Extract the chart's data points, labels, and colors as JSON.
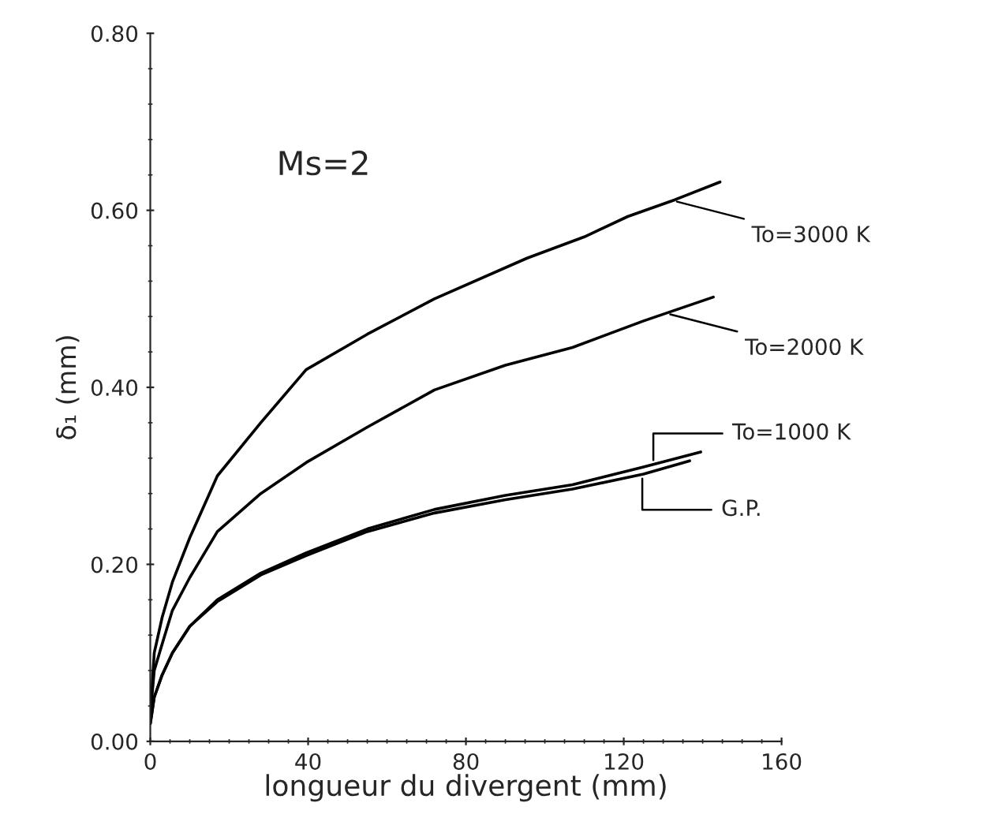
{
  "chart_data": {
    "type": "line",
    "xlabel": "longueur du divergent (mm)",
    "ylabel": "δ₁ (mm)",
    "annotations": [
      "Ms=2"
    ],
    "xlim": [
      0,
      160
    ],
    "xticks": [
      0,
      40,
      80,
      120,
      160
    ],
    "ylim": [
      0,
      0.8
    ],
    "yticks": [
      {
        "value": 0,
        "label": "0.00"
      },
      {
        "value": 0.2,
        "label": "0.20"
      },
      {
        "value": 0.4,
        "label": "0.40"
      },
      {
        "value": 0.6,
        "label": "0.60"
      },
      {
        "value": 0.8,
        "label": "0.80"
      }
    ],
    "grid": false,
    "legend": "right",
    "marker": "none",
    "line_style": "solid",
    "series": [
      {
        "name": "To=3000 K",
        "color": "#000000",
        "x": [
          0,
          1,
          3,
          5.6,
          10,
          17,
          28,
          39.5,
          55,
          72,
          95.5,
          110,
          121,
          133,
          144.4
        ],
        "values": [
          0.03,
          0.1,
          0.14,
          0.18,
          0.23,
          0.3,
          0.36,
          0.42,
          0.46,
          0.5,
          0.546,
          0.57,
          0.593,
          0.612,
          0.632
        ]
      },
      {
        "name": "To=2000 K",
        "color": "#000000",
        "x": [
          0,
          1,
          3,
          5.6,
          10,
          17,
          28,
          39.5,
          55,
          72,
          90,
          107,
          125,
          142.7
        ],
        "values": [
          0.03,
          0.08,
          0.11,
          0.148,
          0.185,
          0.237,
          0.28,
          0.315,
          0.355,
          0.397,
          0.425,
          0.445,
          0.475,
          0.502
        ]
      },
      {
        "name": "To=1000 K",
        "color": "#000000",
        "x": [
          0,
          1,
          3,
          5.6,
          10,
          17,
          28,
          39.5,
          55,
          72,
          90,
          107,
          125,
          139.5
        ],
        "values": [
          0.02,
          0.05,
          0.075,
          0.1,
          0.13,
          0.16,
          0.19,
          0.213,
          0.24,
          0.262,
          0.278,
          0.29,
          0.31,
          0.327
        ]
      },
      {
        "name": "G.P.",
        "color": "#000000",
        "x": [
          0,
          1,
          3,
          5.6,
          10,
          17,
          28,
          39.5,
          55,
          72,
          90,
          107,
          125,
          136.7
        ],
        "values": [
          0.02,
          0.05,
          0.075,
          0.1,
          0.13,
          0.158,
          0.188,
          0.21,
          0.237,
          0.258,
          0.273,
          0.285,
          0.302,
          0.317
        ]
      }
    ]
  }
}
